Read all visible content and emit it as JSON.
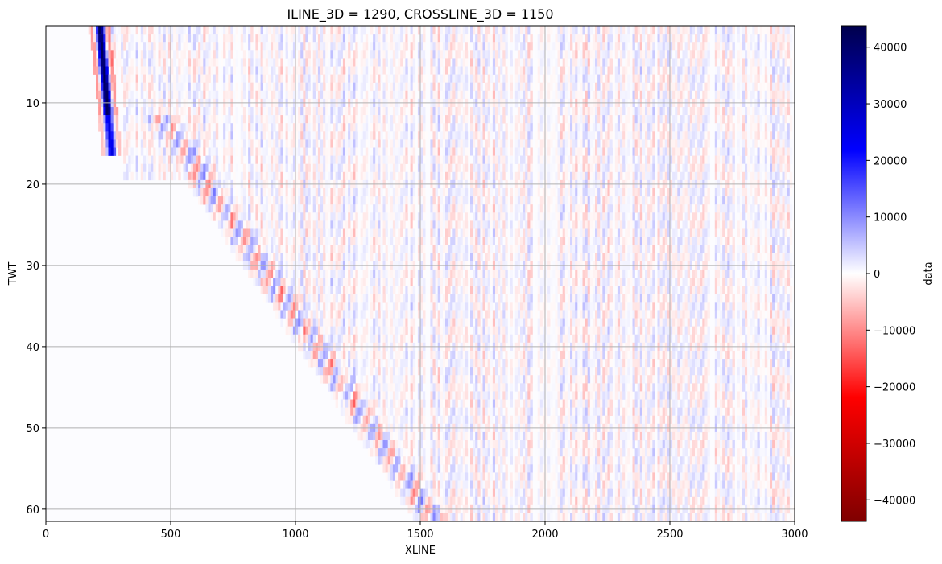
{
  "chart_data": {
    "type": "heatmap",
    "title": "ILINE_3D = 1290, CROSSLINE_3D = 1150",
    "xlabel": "XLINE",
    "ylabel": "TWT",
    "xlim": [
      0,
      3000
    ],
    "ylim": [
      61.5,
      0.5
    ],
    "x_ticks": [
      0,
      500,
      1000,
      1500,
      2000,
      2500,
      3000
    ],
    "y_ticks": [
      10,
      20,
      30,
      40,
      50,
      60
    ],
    "grid": true,
    "colorbar": {
      "label": "data",
      "range": [
        -43800,
        43800
      ],
      "ticks": [
        40000,
        30000,
        20000,
        10000,
        0,
        -10000,
        -20000,
        -30000,
        -40000
      ],
      "colormap": "seismic_r",
      "colors": [
        "#7f0000",
        "#ff0000",
        "#ffffff",
        "#0000ff",
        "#00004c"
      ]
    },
    "features": [
      {
        "description": "strong event",
        "x_start": 200,
        "x_end": 260,
        "twt_start": 0.5,
        "twt_end": 16,
        "peak_value": 43000
      },
      {
        "description": "dipping event",
        "x_start": 600,
        "x_end": 1600,
        "twt_start": 15,
        "twt_end": 61
      },
      {
        "description": "vertical noise",
        "x_start": 1100,
        "x_end": 3000,
        "amplitude_range": [
          -8000,
          8000
        ]
      }
    ]
  }
}
